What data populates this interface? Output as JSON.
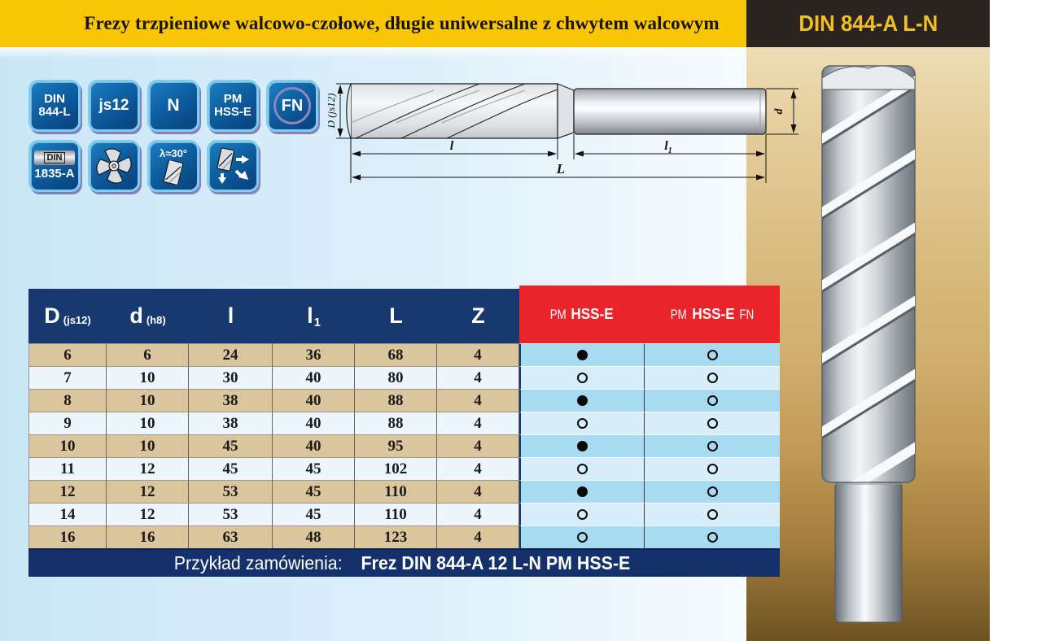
{
  "header": {
    "title": "Frezy trzpieniowe walcowo-czołowe, długie uniwersalne z chwytem walcowym",
    "standard": "DIN 844-A L-N"
  },
  "badges": {
    "row1": [
      {
        "line1": "DIN",
        "line2": "844-L"
      },
      {
        "line1": "js12"
      },
      {
        "line1": "N"
      },
      {
        "line1": "PM",
        "line2": "HSS-E"
      },
      {
        "line1": "FN"
      }
    ],
    "row2": [
      {
        "line1": "DIN",
        "line2": "1835-A"
      },
      {
        "icon": "four-flute-cross-section"
      },
      {
        "line1": "λ≈30°",
        "icon": "helix-angle-mill"
      },
      {
        "icon": "milling-direction-arrows"
      }
    ]
  },
  "drawing": {
    "dim_diameter": "D (js12)",
    "dim_flute_length": "l",
    "dim_shank_length": "l",
    "dim_shank_length_sub": "1",
    "dim_total_length": "L",
    "dim_shank_diameter": "d"
  },
  "table": {
    "headers": [
      {
        "main": "D",
        "sub": "(js12)"
      },
      {
        "main": "d",
        "sub": "(h8)"
      },
      {
        "main": "l",
        "sub": ""
      },
      {
        "main": "l",
        "sub": "1"
      },
      {
        "main": "L",
        "sub": ""
      },
      {
        "main": "Z",
        "sub": ""
      }
    ],
    "variants": [
      {
        "prefix": "PM",
        "name": "HSS-E",
        "suffix": ""
      },
      {
        "prefix": "PM",
        "name": "HSS-E",
        "suffix": "FN"
      }
    ],
    "rows": [
      [
        "6",
        "6",
        "24",
        "36",
        "68",
        "4",
        "filled",
        "open"
      ],
      [
        "7",
        "10",
        "30",
        "40",
        "80",
        "4",
        "open",
        "open"
      ],
      [
        "8",
        "10",
        "38",
        "40",
        "88",
        "4",
        "filled",
        "open"
      ],
      [
        "9",
        "10",
        "38",
        "40",
        "88",
        "4",
        "open",
        "open"
      ],
      [
        "10",
        "10",
        "45",
        "40",
        "95",
        "4",
        "filled",
        "open"
      ],
      [
        "11",
        "12",
        "45",
        "45",
        "102",
        "4",
        "open",
        "open"
      ],
      [
        "12",
        "12",
        "53",
        "45",
        "110",
        "4",
        "filled",
        "open"
      ],
      [
        "14",
        "12",
        "53",
        "45",
        "110",
        "4",
        "open",
        "open"
      ],
      [
        "16",
        "16",
        "63",
        "48",
        "123",
        "4",
        "open",
        "open"
      ]
    ],
    "footer_label": "Przykład zamówienia: ",
    "footer_value": "Frez DIN 844-A 12 L-N PM HSS-E"
  },
  "icons": {
    "filled_dot": "●",
    "open_dot": "○"
  },
  "colors": {
    "accent_yellow": "#F9C606",
    "bar_black": "#2A2421",
    "navy": "#17396F",
    "red": "#E9242B",
    "row_tan": "#DBC59C",
    "row_light": "#EDF6FD",
    "avail_blue": "#A7DBF2",
    "avail_light": "#D8EDFA",
    "badge_blue": "#0D5A9C",
    "gold_top": "#EDDCB4",
    "gold_bottom": "#6E5222"
  }
}
